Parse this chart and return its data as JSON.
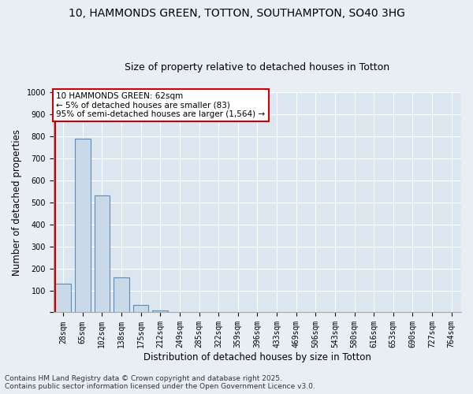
{
  "title_line1": "10, HAMMONDS GREEN, TOTTON, SOUTHAMPTON, SO40 3HG",
  "title_line2": "Size of property relative to detached houses in Totton",
  "xlabel": "Distribution of detached houses by size in Totton",
  "ylabel": "Number of detached properties",
  "categories": [
    "28sqm",
    "65sqm",
    "102sqm",
    "138sqm",
    "175sqm",
    "212sqm",
    "249sqm",
    "285sqm",
    "322sqm",
    "359sqm",
    "396sqm",
    "433sqm",
    "469sqm",
    "506sqm",
    "543sqm",
    "580sqm",
    "616sqm",
    "653sqm",
    "690sqm",
    "727sqm",
    "764sqm"
  ],
  "values": [
    130,
    790,
    530,
    160,
    35,
    8,
    0,
    0,
    0,
    0,
    0,
    0,
    0,
    0,
    0,
    0,
    0,
    0,
    0,
    0,
    0
  ],
  "bar_color": "#c9d9e8",
  "bar_edge_color": "#5b8db8",
  "ylim": [
    0,
    1000
  ],
  "yticks": [
    0,
    100,
    200,
    300,
    400,
    500,
    600,
    700,
    800,
    900,
    1000
  ],
  "annotation_title": "10 HAMMONDS GREEN: 62sqm",
  "annotation_line1": "← 5% of detached houses are smaller (83)",
  "annotation_line2": "95% of semi-detached houses are larger (1,564) →",
  "annotation_box_color": "#ffffff",
  "annotation_box_edge_color": "#cc0000",
  "red_line_color": "#cc0000",
  "footer_line1": "Contains HM Land Registry data © Crown copyright and database right 2025.",
  "footer_line2": "Contains public sector information licensed under the Open Government Licence v3.0.",
  "bg_color": "#e8eef4",
  "plot_bg_color": "#dce6f0",
  "grid_color": "#ffffff",
  "title_fontsize": 10,
  "subtitle_fontsize": 9,
  "tick_fontsize": 7,
  "axis_label_fontsize": 8.5,
  "footer_fontsize": 6.5,
  "annotation_fontsize": 7.5
}
